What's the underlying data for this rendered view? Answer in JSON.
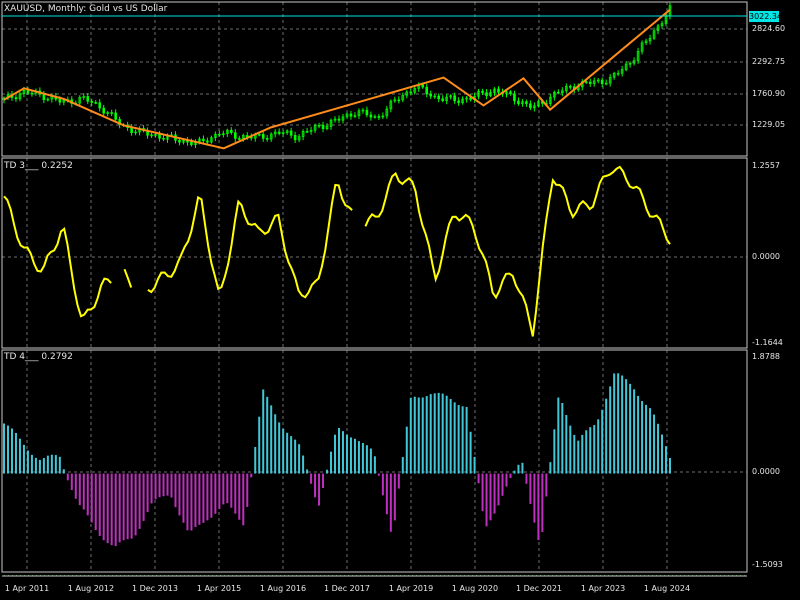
{
  "window": {
    "title": "XAUUSD, Monthly:  Gold vs US Dollar"
  },
  "price_panel": {
    "current_price": "3022.34",
    "y_labels": [
      "2824.60",
      "2292.75",
      "1760.90",
      "1229.05"
    ]
  },
  "td3_panel": {
    "title": "TD 3___ 0.2252",
    "y_labels": [
      "1.2557",
      "0.0000",
      "-1.1644"
    ]
  },
  "td4_panel": {
    "title": "TD 4___ 0.2792",
    "y_labels": [
      "1.8788",
      "0.0000",
      "-1.5093"
    ]
  },
  "x_axis": {
    "labels": [
      "1 Apr 2011",
      "1 Aug 2012",
      "1 Dec 2013",
      "1 Apr 2015",
      "1 Aug 2016",
      "1 Dec 2017",
      "1 Apr 2019",
      "1 Aug 2020",
      "1 Dec 2021",
      "1 Apr 2023",
      "1 Aug 2024"
    ]
  },
  "colors": {
    "background": "#000000",
    "grid": "#6e6e6e",
    "candle": "#00ff00",
    "zigzag": "#ff8c1a",
    "price_line": "#00e5e5",
    "td3_line": "#ffff00",
    "td4_positive": "#40c8d8",
    "td4_negative": "#c030c0"
  },
  "chart_data": [
    {
      "type": "line",
      "series": [
        {
          "name": "XAUUSD",
          "values": [
            1760,
            1870,
            1820,
            1720,
            1780,
            1650,
            1400,
            1300,
            1250,
            1190,
            1150,
            1300,
            1250,
            1230,
            1300,
            1250,
            1380,
            1470,
            1600,
            1500,
            1750,
            1950,
            1800,
            1750,
            1800,
            1900,
            1790,
            1640,
            1820,
            1950,
            2000,
            2050,
            2300,
            2650,
            3022
          ]
        }
      ],
      "ylim": [
        1000,
        3100
      ]
    },
    {
      "type": "line",
      "series": [
        {
          "name": "TD 3",
          "values": [
            0.8,
            0.1,
            -0.2,
            0.4,
            -0.9,
            -0.4,
            -0.2,
            -0.5,
            -0.3,
            -0.1,
            0.8,
            -0.6,
            0.7,
            0.3,
            0.5,
            -0.5,
            -0.4,
            1.0,
            0.4,
            0.5,
            1.1,
            0.9,
            -0.3,
            0.6,
            0.4,
            -0.5,
            -0.2,
            -1.0,
            1.1,
            0.6,
            0.7,
            1.2,
            1.0,
            0.6,
            0.23
          ]
        }
      ],
      "ylim": [
        -1.1644,
        1.2557
      ]
    },
    {
      "type": "bar",
      "series": [
        {
          "name": "TD 4",
          "values": [
            0.8,
            0.5,
            0.2,
            0.3,
            -0.5,
            -0.9,
            -1.2,
            -1.0,
            -0.5,
            -0.3,
            -1.0,
            -0.7,
            -0.5,
            -0.8,
            1.3,
            0.8,
            0.4,
            -0.5,
            0.7,
            0.6,
            0.3,
            -1.0,
            1.2,
            1.3,
            1.2,
            1.1,
            -0.9,
            -0.3,
            0.2,
            -1.2,
            1.3,
            0.5,
            0.8,
            1.6,
            1.4,
            1.0,
            0.28
          ]
        }
      ],
      "ylim": [
        -1.5093,
        1.8788
      ]
    }
  ]
}
